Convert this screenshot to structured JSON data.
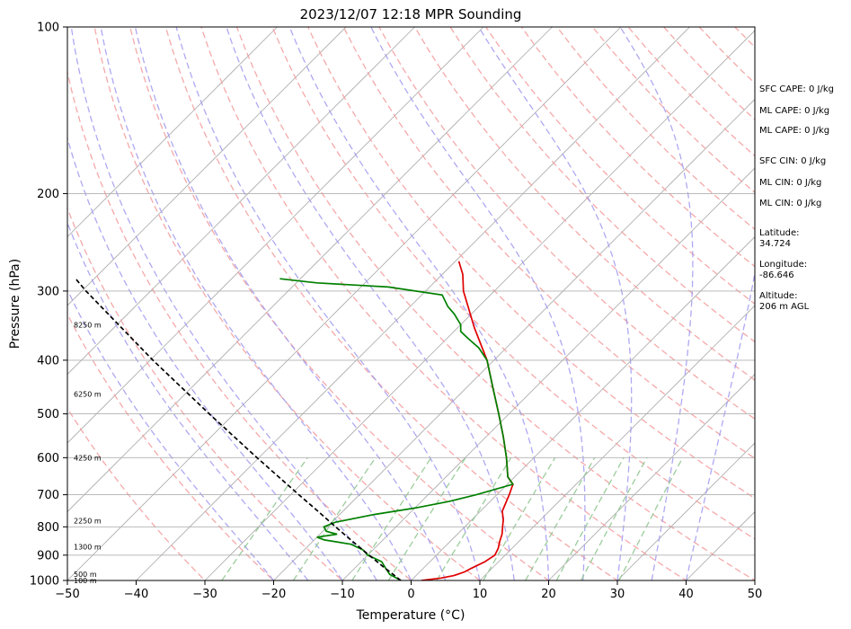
{
  "chart_data": {
    "type": "line",
    "title": "2023/12/07 12:18 MPR Sounding",
    "xlabel": "Temperature (°C)",
    "ylabel": "Pressure (hPa)",
    "xlim": [
      -50,
      50
    ],
    "ylim": [
      1000,
      100
    ],
    "y_scale": "log",
    "skew": "skew-T",
    "x_ticks": [
      -50,
      -40,
      -30,
      -20,
      -10,
      0,
      10,
      20,
      30,
      40,
      50
    ],
    "x_tick_labels": [
      "−50",
      "−40",
      "−30",
      "−20",
      "−10",
      "0",
      "10",
      "20",
      "30",
      "40",
      "50"
    ],
    "y_ticks": [
      1000,
      900,
      800,
      700,
      600,
      500,
      400,
      300,
      200,
      100
    ],
    "y_tick_labels": [
      "1000",
      "900",
      "800",
      "700",
      "600",
      "500",
      "400",
      "300",
      "200",
      "100"
    ],
    "grid": true,
    "height_labels": [
      {
        "pressure": 1000,
        "label": "100 m"
      },
      {
        "pressure": 975,
        "label": "500 m"
      },
      {
        "pressure": 870,
        "label": "1300 m"
      },
      {
        "pressure": 780,
        "label": "2250 m"
      },
      {
        "pressure": 600,
        "label": "4250 m"
      },
      {
        "pressure": 460,
        "label": "6250 m"
      },
      {
        "pressure": 345,
        "label": "8250 m"
      }
    ],
    "series": [
      {
        "color": "#e00000",
        "points": [
          {
            "p": 1000,
            "t": 1.5
          },
          {
            "p": 990,
            "t": 4.0
          },
          {
            "p": 980,
            "t": 5.5
          },
          {
            "p": 965,
            "t": 6.5
          },
          {
            "p": 950,
            "t": 7.0
          },
          {
            "p": 925,
            "t": 8.0
          },
          {
            "p": 900,
            "t": 8.5
          },
          {
            "p": 875,
            "t": 8.0
          },
          {
            "p": 850,
            "t": 7.2
          },
          {
            "p": 825,
            "t": 6.5
          },
          {
            "p": 800,
            "t": 5.5
          },
          {
            "p": 775,
            "t": 4.5
          },
          {
            "p": 750,
            "t": 3.2
          },
          {
            "p": 725,
            "t": 2.5
          },
          {
            "p": 700,
            "t": 1.8
          },
          {
            "p": 670,
            "t": 0.8
          },
          {
            "p": 650,
            "t": -1.0
          },
          {
            "p": 600,
            "t": -4.0
          },
          {
            "p": 550,
            "t": -7.5
          },
          {
            "p": 500,
            "t": -11.5
          },
          {
            "p": 450,
            "t": -16.0
          },
          {
            "p": 400,
            "t": -21.0
          },
          {
            "p": 350,
            "t": -27.5
          },
          {
            "p": 300,
            "t": -34.5
          },
          {
            "p": 280,
            "t": -37.0
          },
          {
            "p": 265,
            "t": -39.5
          }
        ]
      },
      {
        "color": "#008000",
        "points": [
          {
            "p": 1000,
            "t": -1.5
          },
          {
            "p": 990,
            "t": -2.5
          },
          {
            "p": 975,
            "t": -4.0
          },
          {
            "p": 950,
            "t": -5.5
          },
          {
            "p": 925,
            "t": -7.0
          },
          {
            "p": 900,
            "t": -10.0
          },
          {
            "p": 880,
            "t": -11.5
          },
          {
            "p": 860,
            "t": -14.0
          },
          {
            "p": 845,
            "t": -18.5
          },
          {
            "p": 835,
            "t": -20.0
          },
          {
            "p": 825,
            "t": -17.5
          },
          {
            "p": 815,
            "t": -19.5
          },
          {
            "p": 800,
            "t": -20.5
          },
          {
            "p": 785,
            "t": -19.5
          },
          {
            "p": 760,
            "t": -15.0
          },
          {
            "p": 740,
            "t": -10.0
          },
          {
            "p": 720,
            "t": -6.0
          },
          {
            "p": 700,
            "t": -3.0
          },
          {
            "p": 670,
            "t": 0.8
          },
          {
            "p": 650,
            "t": -1.0
          },
          {
            "p": 600,
            "t": -4.0
          },
          {
            "p": 550,
            "t": -7.5
          },
          {
            "p": 500,
            "t": -11.5
          },
          {
            "p": 450,
            "t": -16.0
          },
          {
            "p": 400,
            "t": -21.0
          },
          {
            "p": 380,
            "t": -24.0
          },
          {
            "p": 365,
            "t": -27.0
          },
          {
            "p": 355,
            "t": -29.0
          },
          {
            "p": 345,
            "t": -30.0
          },
          {
            "p": 330,
            "t": -32.5
          },
          {
            "p": 320,
            "t": -34.5
          },
          {
            "p": 305,
            "t": -37.0
          },
          {
            "p": 295,
            "t": -46.0
          },
          {
            "p": 290,
            "t": -57.0
          },
          {
            "p": 285,
            "t": -63.0
          }
        ]
      },
      {
        "color": "#000000",
        "dashed": true,
        "points": [
          {
            "p": 1000,
            "t": -1.5
          },
          {
            "p": 975,
            "t": -3.5
          },
          {
            "p": 950,
            "t": -5.6
          },
          {
            "p": 900,
            "t": -9.8
          },
          {
            "p": 850,
            "t": -14.2
          },
          {
            "p": 800,
            "t": -18.8
          },
          {
            "p": 750,
            "t": -23.6
          },
          {
            "p": 700,
            "t": -28.8
          },
          {
            "p": 600,
            "t": -40.3
          },
          {
            "p": 500,
            "t": -53.6
          },
          {
            "p": 400,
            "t": -69.6
          },
          {
            "p": 300,
            "t": -89.4
          },
          {
            "p": 285,
            "t": -92.7
          }
        ]
      }
    ]
  },
  "side_panel": {
    "sfc_cape": "SFC CAPE: 0 J/kg",
    "ml_cape_1": "ML CAPE: 0 J/kg",
    "ml_cape_2": "ML CAPE: 0 J/kg",
    "sfc_cin": "SFC CIN: 0 J/kg",
    "ml_cin_1": "ML CIN: 0 J/kg",
    "ml_cin_2": "ML CIN: 0 J/kg",
    "latitude_label": "Latitude:",
    "latitude_value": "34.724",
    "longitude_label": "Longitude:",
    "longitude_value": "-86.646",
    "altitude_label": "Altitude:",
    "altitude_value": "206 m AGL"
  },
  "colors": {
    "temperature": "#e00000",
    "dewpoint": "#008000",
    "parcel": "#000000",
    "dry_adiabat": "#f4a0a0",
    "moist_adiabat": "#a09af0",
    "mixing_ratio": "#90c890",
    "isotherm": "#aaaaaa"
  }
}
